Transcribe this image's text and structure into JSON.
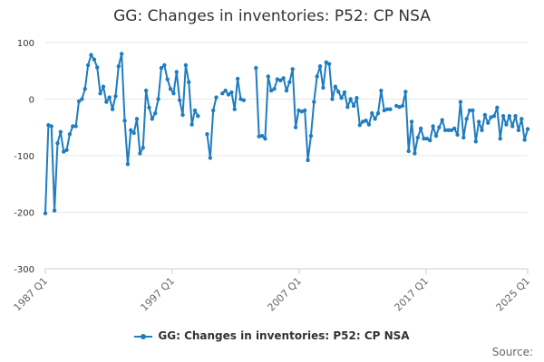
{
  "chart_data": {
    "type": "line",
    "title": "GG: Changes in inventories: P52: CP NSA",
    "xlabel": "",
    "ylabel": "",
    "ylim": [
      -300,
      100
    ],
    "yticks": [
      100,
      0,
      -100,
      -200,
      -300
    ],
    "xtick_labels": [
      "1987 Q1",
      "1997 Q1",
      "2007 Q1",
      "2017 Q1",
      "2025 Q1"
    ],
    "x_start": "1987 Q1",
    "x_end": "2025 Q1",
    "grid": true,
    "legend_position": "bottom",
    "series": [
      {
        "name": "GG: Changes in inventories: P52: CP NSA",
        "color": "#1f7cc1",
        "values": [
          -202,
          -46,
          -48,
          -197,
          -78,
          -58,
          -93,
          -90,
          -62,
          -48,
          -48,
          -4,
          0,
          18,
          60,
          78,
          70,
          56,
          10,
          22,
          -5,
          3,
          -18,
          5,
          58,
          80,
          -38,
          -115,
          -55,
          -60,
          -35,
          -96,
          -86,
          15,
          -15,
          -35,
          -25,
          0,
          55,
          60,
          35,
          18,
          10,
          48,
          -2,
          -28,
          60,
          30,
          -45,
          -20,
          -30,
          null,
          null,
          -62,
          -104,
          -20,
          3,
          null,
          10,
          15,
          8,
          12,
          -18,
          36,
          0,
          -2,
          null,
          null,
          null,
          55,
          -66,
          -65,
          -70,
          40,
          15,
          18,
          35,
          33,
          37,
          15,
          30,
          53,
          -50,
          -20,
          -22,
          -20,
          -108,
          -65,
          -5,
          40,
          58,
          20,
          65,
          62,
          0,
          22,
          13,
          2,
          12,
          -14,
          0,
          -12,
          2,
          -46,
          -40,
          -38,
          -45,
          -25,
          -35,
          -25,
          15,
          -20,
          -18,
          -18,
          null,
          -12,
          -14,
          -12,
          13,
          -92,
          -40,
          -96,
          -68,
          -52,
          -70,
          -70,
          -73,
          -48,
          -65,
          -50,
          -37,
          -55,
          -55,
          -55,
          -52,
          -63,
          -5,
          -68,
          -35,
          -20,
          -20,
          -75,
          -40,
          -55,
          -28,
          -42,
          -32,
          -30,
          -15,
          -70,
          -30,
          -45,
          -30,
          -48,
          -30,
          -55,
          -35,
          -72,
          -53
        ]
      }
    ]
  },
  "legend": {
    "label": "GG: Changes in inventories: P52: CP NSA"
  },
  "footer": {
    "source_label": "Source:"
  }
}
